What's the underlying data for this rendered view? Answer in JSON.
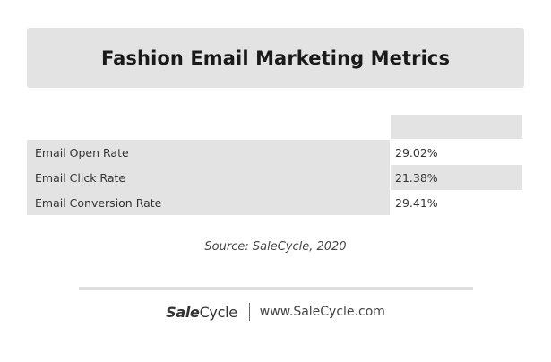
{
  "chart_data": {
    "type": "table",
    "title": "Fashion Email Marketing Metrics",
    "columns": [
      "",
      ""
    ],
    "rows": [
      {
        "label": "Email Open Rate",
        "value": "29.02%"
      },
      {
        "label": "Email Click Rate",
        "value": "21.38%"
      },
      {
        "label": "Email Conversion Rate",
        "value": "29.41%"
      }
    ],
    "source": "Source: SaleCycle, 2020"
  },
  "footer": {
    "logo_bold": "Sale",
    "logo_regular": "Cycle",
    "url": "www.SaleCycle.com"
  }
}
